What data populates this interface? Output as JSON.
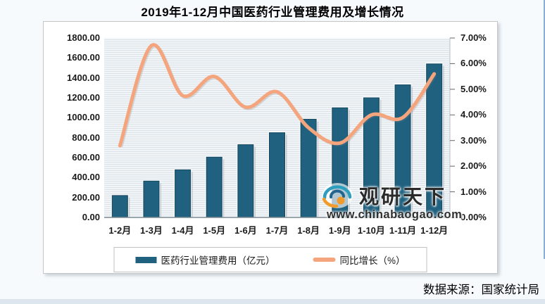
{
  "page": {
    "title": "2019年1-12月中国医药行业管理费用及增长情况",
    "source": "数据来源：国家统计局"
  },
  "watermark": {
    "brand": "观研天下",
    "url": "www.chinabaogao.com"
  },
  "chart_data": {
    "type": "bar",
    "combo": "bar+line",
    "title": "2019年1-12月中国医药行业管理费用及增长情况",
    "categories": [
      "1-2月",
      "1-3月",
      "1-4月",
      "1-5月",
      "1-6月",
      "1-7月",
      "1-8月",
      "1-9月",
      "1-10月",
      "1-11月",
      "1-12月"
    ],
    "series": [
      {
        "name": "医药行业管理费用（亿元）",
        "type": "bar",
        "axis": "left",
        "values": [
          220,
          365,
          478,
          605,
          730,
          850,
          985,
          1100,
          1200,
          1330,
          1540
        ],
        "color": "#20617F"
      },
      {
        "name": "同比增长（%）",
        "type": "line",
        "axis": "right",
        "values": [
          2.8,
          6.7,
          4.75,
          5.5,
          4.3,
          4.9,
          3.5,
          2.9,
          4.0,
          3.9,
          5.6
        ],
        "color": "#F5A57D"
      }
    ],
    "left_axis": {
      "min": 0,
      "max": 1800,
      "step": 200,
      "format": "0.00"
    },
    "right_axis": {
      "min": 0,
      "max": 7,
      "step": 1,
      "format": "0.00%"
    },
    "legend_position": "bottom",
    "grid": "horizontal-stripes"
  }
}
